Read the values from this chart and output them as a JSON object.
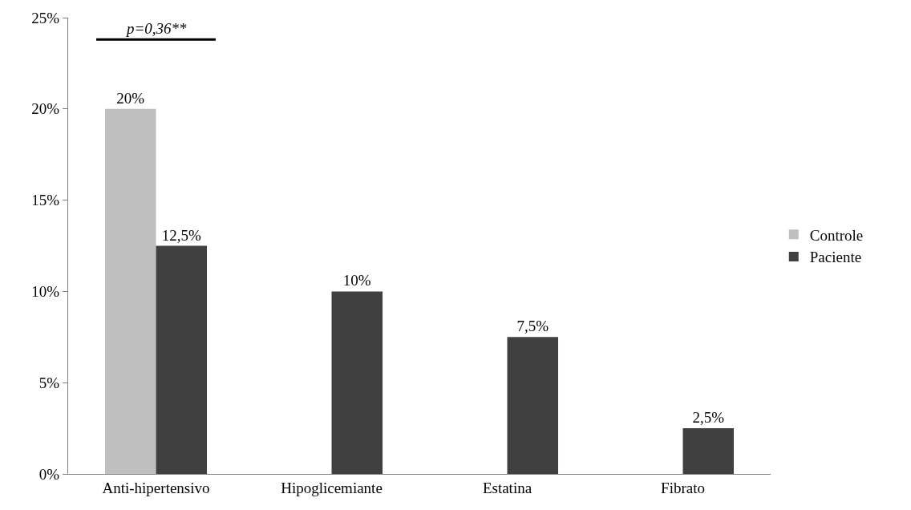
{
  "chart_data": {
    "type": "bar",
    "categories": [
      "Anti-hipertensivo",
      "Hipoglicemiante",
      "Estatina",
      "Fibrato"
    ],
    "series": [
      {
        "name": "Controle",
        "color": "#bfbfbf",
        "values": [
          20,
          null,
          null,
          null
        ],
        "value_labels": [
          "20%",
          null,
          null,
          null
        ]
      },
      {
        "name": "Paciente",
        "color": "#404040",
        "values": [
          12.5,
          10,
          7.5,
          2.5
        ],
        "value_labels": [
          "12,5%",
          "10%",
          "7,5%",
          "2,5%"
        ]
      }
    ],
    "ylim": [
      0,
      25
    ],
    "yticks": [
      {
        "value": 0,
        "label": "0%"
      },
      {
        "value": 5,
        "label": "5%"
      },
      {
        "value": 10,
        "label": "10%"
      },
      {
        "value": 15,
        "label": "15%"
      },
      {
        "value": 20,
        "label": "20%"
      },
      {
        "value": 25,
        "label": "25%"
      }
    ],
    "annotations": [
      "p=0,36**"
    ],
    "legend": "right"
  }
}
